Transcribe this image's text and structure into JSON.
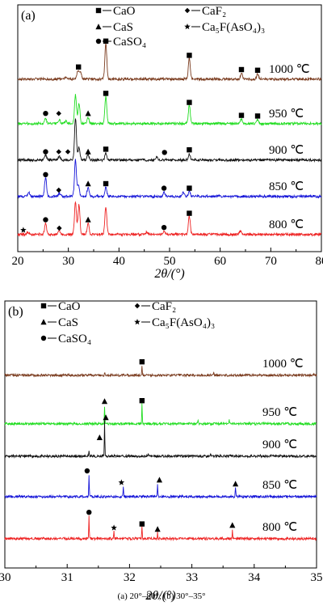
{
  "caption": "(a)  20°–80°;  (b)  30°–35°",
  "chart_data": [
    {
      "type": "line",
      "panel_label": "(a)",
      "xlabel": "2θ/(°)",
      "xlim": [
        20,
        80
      ],
      "x_ticks": [
        20,
        30,
        40,
        50,
        60,
        70,
        80
      ],
      "y_ticks": false,
      "legend": [
        {
          "marker": "square",
          "label": "CaO"
        },
        {
          "marker": "diamond",
          "label": "CaF₂"
        },
        {
          "marker": "triangle",
          "label": "CaS"
        },
        {
          "marker": "star",
          "label": "Ca₅F(AsO₄)₃"
        },
        {
          "marker": "circle",
          "label": "CaSO₄"
        }
      ],
      "series": [
        {
          "name": "1000 ℃",
          "color": "#7a3b1e",
          "baseline": 0.0,
          "peaks": [
            [
              29.5,
              0.15
            ],
            [
              31.9,
              0.65
            ],
            [
              32.4,
              0.5
            ],
            [
              37.4,
              2.7
            ],
            [
              53.9,
              1.6
            ],
            [
              64.2,
              0.45
            ],
            [
              67.4,
              0.4
            ]
          ],
          "markers": [
            {
              "x": 32.0,
              "y": 0.95,
              "shape": "square"
            },
            {
              "x": 37.4,
              "y": 2.95,
              "shape": "square"
            },
            {
              "x": 53.9,
              "y": 1.85,
              "shape": "square"
            },
            {
              "x": 64.2,
              "y": 0.75,
              "shape": "square"
            },
            {
              "x": 67.4,
              "y": 0.7,
              "shape": "square"
            }
          ]
        },
        {
          "name": "950 ℃",
          "color": "#22dd22",
          "baseline": 0.0,
          "peaks": [
            [
              25.5,
              0.4
            ],
            [
              28.2,
              0.3
            ],
            [
              29.5,
              0.2
            ],
            [
              31.4,
              2.2
            ],
            [
              32.1,
              1.6
            ],
            [
              33.9,
              0.45
            ],
            [
              37.4,
              2.1
            ],
            [
              53.9,
              1.4
            ],
            [
              64.2,
              0.35
            ],
            [
              67.4,
              0.3
            ]
          ],
          "markers": [
            {
              "x": 25.5,
              "y": 0.8,
              "shape": "circle"
            },
            {
              "x": 28.1,
              "y": 0.8,
              "shape": "diamond"
            },
            {
              "x": 33.9,
              "y": 0.8,
              "shape": "triangle"
            },
            {
              "x": 37.4,
              "y": 2.35,
              "shape": "square"
            },
            {
              "x": 53.9,
              "y": 1.65,
              "shape": "square"
            },
            {
              "x": 64.2,
              "y": 0.65,
              "shape": "square"
            },
            {
              "x": 67.4,
              "y": 0.6,
              "shape": "square"
            }
          ]
        },
        {
          "name": "900 ℃",
          "color": "#111111",
          "baseline": 0.0,
          "peaks": [
            [
              25.5,
              0.35
            ],
            [
              28.2,
              0.3
            ],
            [
              31.4,
              3.2
            ],
            [
              32.1,
              1.0
            ],
            [
              33.9,
              0.4
            ],
            [
              37.4,
              0.55
            ],
            [
              47.5,
              0.25
            ],
            [
              53.9,
              0.45
            ]
          ],
          "markers": [
            {
              "x": 25.5,
              "y": 0.65,
              "shape": "circle"
            },
            {
              "x": 28.1,
              "y": 0.65,
              "shape": "diamond"
            },
            {
              "x": 29.9,
              "y": 0.65,
              "shape": "diamond"
            },
            {
              "x": 33.9,
              "y": 0.65,
              "shape": "triangle"
            },
            {
              "x": 37.4,
              "y": 0.85,
              "shape": "square"
            },
            {
              "x": 49.0,
              "y": 0.6,
              "shape": "circle"
            },
            {
              "x": 53.9,
              "y": 0.8,
              "shape": "square"
            }
          ]
        },
        {
          "name": "850 ℃",
          "color": "#1515d8",
          "baseline": 0.0,
          "peaks": [
            [
              22.2,
              0.3
            ],
            [
              25.5,
              1.5
            ],
            [
              28.2,
              0.25
            ],
            [
              31.4,
              2.8
            ],
            [
              32.0,
              0.9
            ],
            [
              33.9,
              0.7
            ],
            [
              37.4,
              0.7
            ],
            [
              48.9,
              0.3
            ],
            [
              52.7,
              0.3
            ],
            [
              53.9,
              0.4
            ]
          ],
          "markers": [
            {
              "x": 25.5,
              "y": 1.7,
              "shape": "circle"
            },
            {
              "x": 28.1,
              "y": 0.5,
              "shape": "diamond"
            },
            {
              "x": 33.9,
              "y": 1.0,
              "shape": "triangle"
            },
            {
              "x": 37.4,
              "y": 1.0,
              "shape": "square"
            },
            {
              "x": 48.9,
              "y": 0.65,
              "shape": "circle"
            },
            {
              "x": 53.9,
              "y": 0.65,
              "shape": "square"
            }
          ]
        },
        {
          "name": "800 ℃",
          "color": "#ee2222",
          "baseline": 0.0,
          "peaks": [
            [
              22.0,
              0.2
            ],
            [
              25.5,
              0.9
            ],
            [
              28.2,
              0.3
            ],
            [
              31.4,
              2.5
            ],
            [
              32.1,
              2.3
            ],
            [
              33.9,
              0.9
            ],
            [
              37.4,
              2.1
            ],
            [
              45.5,
              0.2
            ],
            [
              48.9,
              0.25
            ],
            [
              53.9,
              1.4
            ],
            [
              64.0,
              0.25
            ]
          ],
          "markers": [
            {
              "x": 21.1,
              "y": 0.35,
              "shape": "star"
            },
            {
              "x": 25.5,
              "y": 1.15,
              "shape": "circle"
            },
            {
              "x": 28.2,
              "y": 0.5,
              "shape": "diamond"
            },
            {
              "x": 33.9,
              "y": 1.15,
              "shape": "triangle"
            },
            {
              "x": 48.9,
              "y": 0.55,
              "shape": "circle"
            },
            {
              "x": 53.9,
              "y": 1.65,
              "shape": "square"
            }
          ]
        }
      ]
    },
    {
      "type": "line",
      "panel_label": "(b)",
      "xlabel": "2θ/(°)",
      "xlim": [
        30,
        35
      ],
      "x_ticks": [
        30,
        31,
        32,
        33,
        34,
        35
      ],
      "y_ticks": false,
      "legend": [
        {
          "marker": "square",
          "label": "CaO"
        },
        {
          "marker": "diamond",
          "label": "CaF₂"
        },
        {
          "marker": "triangle",
          "label": "CaS"
        },
        {
          "marker": "star",
          "label": "Ca₅F(AsO₄)₃"
        },
        {
          "marker": "circle",
          "label": "CaSO₄"
        }
      ],
      "series": [
        {
          "name": "1000 ℃",
          "color": "#7a3b1e",
          "baseline": 0.0,
          "peaks": [
            [
              31.6,
              0.25
            ],
            [
              32.2,
              0.8
            ],
            [
              33.35,
              0.25
            ]
          ],
          "markers": [
            {
              "x": 32.2,
              "y": 1.05,
              "shape": "square"
            }
          ]
        },
        {
          "name": "950 ℃",
          "color": "#22dd22",
          "baseline": 0.0,
          "peaks": [
            [
              31.6,
              1.4
            ],
            [
              32.2,
              1.5
            ],
            [
              33.1,
              0.3
            ],
            [
              33.6,
              0.35
            ]
          ],
          "markers": [
            {
              "x": 31.6,
              "y": 1.75,
              "shape": "triangle"
            },
            {
              "x": 32.2,
              "y": 1.8,
              "shape": "square"
            }
          ]
        },
        {
          "name": "900 ℃",
          "color": "#111111",
          "baseline": 0.0,
          "peaks": [
            [
              31.35,
              0.5
            ],
            [
              31.6,
              2.7
            ],
            [
              32.3,
              0.25
            ],
            [
              33.3,
              0.2
            ],
            [
              34.1,
              0.2
            ]
          ],
          "markers": [
            {
              "x": 31.52,
              "y": 1.45,
              "shape": "triangle"
            },
            {
              "x": 31.62,
              "y": 3.0,
              "shape": "triangle"
            }
          ]
        },
        {
          "name": "850 ℃",
          "color": "#1515d8",
          "baseline": 0.0,
          "peaks": [
            [
              31.35,
              1.7
            ],
            [
              31.9,
              0.8
            ],
            [
              32.45,
              1.0
            ],
            [
              33.7,
              0.7
            ]
          ],
          "markers": [
            {
              "x": 31.32,
              "y": 2.0,
              "shape": "circle"
            },
            {
              "x": 31.87,
              "y": 1.1,
              "shape": "star"
            },
            {
              "x": 32.48,
              "y": 1.3,
              "shape": "triangle"
            },
            {
              "x": 33.7,
              "y": 1.0,
              "shape": "triangle"
            }
          ]
        },
        {
          "name": "800 ℃",
          "color": "#ee2222",
          "baseline": 0.0,
          "peaks": [
            [
              31.35,
              1.8
            ],
            [
              31.75,
              0.55
            ],
            [
              32.2,
              0.9
            ],
            [
              32.45,
              0.45
            ],
            [
              33.65,
              0.75
            ]
          ],
          "markers": [
            {
              "x": 31.35,
              "y": 2.05,
              "shape": "circle"
            },
            {
              "x": 31.75,
              "y": 0.85,
              "shape": "star"
            },
            {
              "x": 32.2,
              "y": 1.15,
              "shape": "square"
            },
            {
              "x": 32.45,
              "y": 0.75,
              "shape": "triangle"
            },
            {
              "x": 33.65,
              "y": 1.05,
              "shape": "triangle"
            }
          ]
        }
      ]
    }
  ]
}
